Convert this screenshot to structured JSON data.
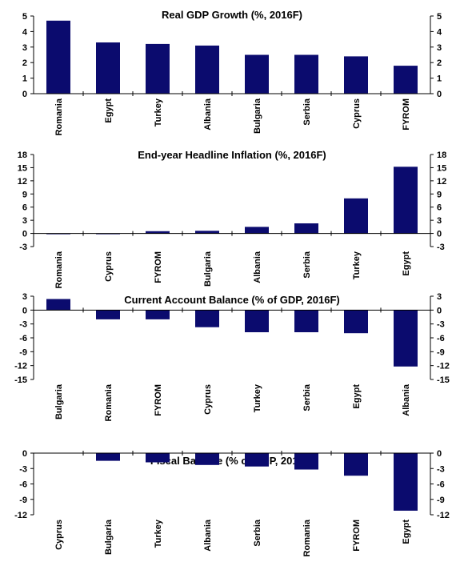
{
  "colors": {
    "bar": "#0b0b6e",
    "axis": "#000000",
    "background": "#ffffff"
  },
  "chart_data": [
    {
      "type": "bar",
      "title": "Real GDP Growth (%, 2016F)",
      "categories": [
        "Romania",
        "Egypt",
        "Turkey",
        "Albania",
        "Bulgaria",
        "Serbia",
        "Cyprus",
        "FYROM"
      ],
      "values": [
        4.7,
        3.3,
        3.2,
        3.1,
        2.5,
        2.5,
        2.4,
        1.8
      ],
      "ylim": [
        0,
        5
      ],
      "yticks": [
        0,
        1,
        2,
        3,
        4,
        5
      ],
      "ytick_labels": [
        "0",
        "1",
        "2",
        "3",
        "4",
        "5"
      ],
      "secondary_axis": true,
      "grid": false,
      "legend": "none"
    },
    {
      "type": "bar",
      "title": "End-year Headline Inflation (%, 2016F)",
      "categories": [
        "Romania",
        "Cyprus",
        "FYROM",
        "Bulgaria",
        "Albania",
        "Serbia",
        "Turkey",
        "Egypt"
      ],
      "values": [
        -0.1,
        -0.1,
        0.5,
        0.6,
        1.5,
        2.3,
        8.0,
        15.2
      ],
      "ylim": [
        -3,
        18
      ],
      "yticks": [
        -3,
        0,
        3,
        6,
        9,
        12,
        15,
        18
      ],
      "ytick_labels": [
        "-3",
        "0",
        "3",
        "6",
        "9",
        "12",
        "15",
        "18"
      ],
      "secondary_axis": true,
      "grid": false,
      "legend": "none"
    },
    {
      "type": "bar",
      "title": "Current Account Balance (% of GDP, 2016F)",
      "categories": [
        "Bulgaria",
        "Romania",
        "FYROM",
        "Cyprus",
        "Turkey",
        "Serbia",
        "Egypt",
        "Albania"
      ],
      "values": [
        2.4,
        -2.0,
        -2.0,
        -3.7,
        -4.8,
        -4.8,
        -5.0,
        -12.2
      ],
      "ylim": [
        -15,
        3
      ],
      "yticks": [
        -15,
        -12,
        -9,
        -6,
        -3,
        0,
        3
      ],
      "ytick_labels": [
        "-15",
        "-12",
        "-9",
        "-6",
        "-3",
        "0",
        "3"
      ],
      "secondary_axis": true,
      "grid": false,
      "legend": "none"
    },
    {
      "type": "bar",
      "title": "Fiscal Balance (% of GDP, 2016F)",
      "categories": [
        "Cyprus",
        "Bulgaria",
        "Turkey",
        "Albania",
        "Serbia",
        "Romania",
        "FYROM",
        "Egypt"
      ],
      "category_labels": [
        "Cyprus",
        "Bulgaria",
        "Turkey",
        "Albania",
        "Serbia",
        "Romania",
        "FYROM",
        "Egypt"
      ],
      "values": [
        0.0,
        -1.5,
        -1.8,
        -2.3,
        -2.6,
        -3.2,
        -4.4,
        -11.2
      ],
      "ylim": [
        -12,
        0
      ],
      "yticks": [
        -12,
        -9,
        -6,
        -3,
        0
      ],
      "ytick_labels": [
        "-12",
        "-9",
        "-6",
        "-3",
        "0"
      ],
      "secondary_axis": true,
      "grid": false,
      "legend": "none"
    }
  ]
}
